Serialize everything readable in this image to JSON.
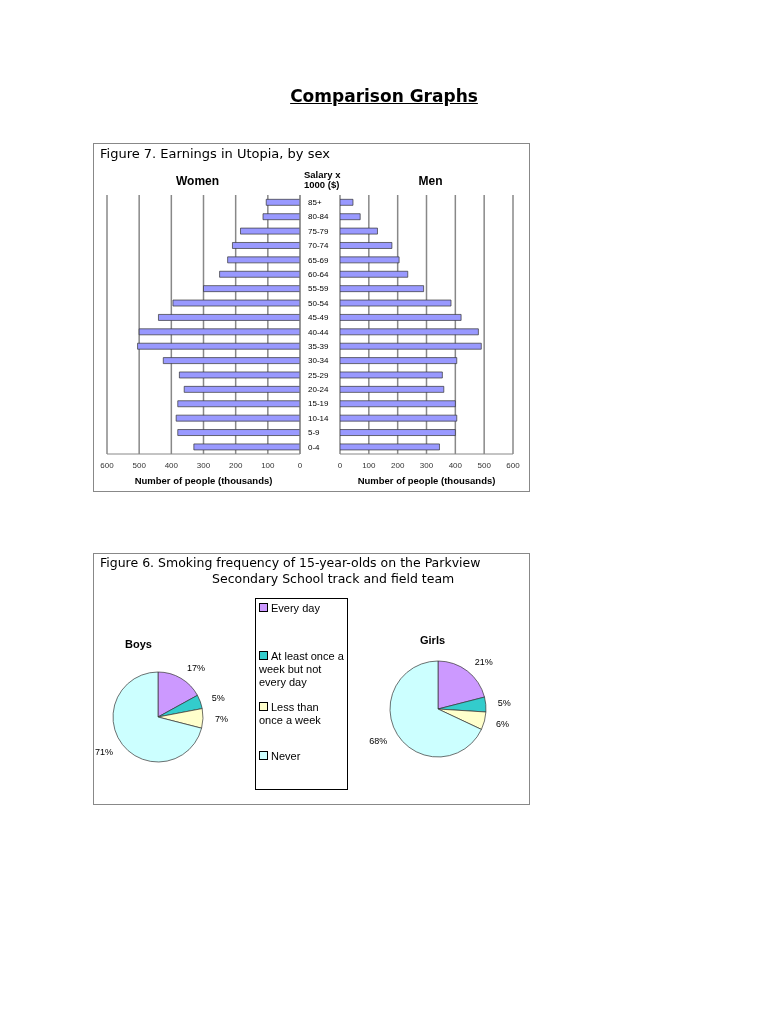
{
  "chart_data": [
    {
      "type": "bar",
      "orientation": "horizontal",
      "title": "Women",
      "annotations": [
        "Comparison Graphs",
        "Figure 7. Earnings in Utopia, by sex"
      ],
      "xlabel": "Number of people (thousands)",
      "categories": [
        "85+",
        "80-84",
        "75-79",
        "70-74",
        "65-69",
        "60-64",
        "55-59",
        "50-54",
        "45-49",
        "40-44",
        "35-39",
        "30-34",
        "25-29",
        "20-24",
        "15-19",
        "10-14",
        "5-9",
        "0-4"
      ],
      "values": [
        105,
        115,
        185,
        210,
        225,
        250,
        300,
        395,
        440,
        500,
        505,
        425,
        375,
        360,
        380,
        385,
        380,
        330
      ],
      "color": "#9999ff",
      "xlim": [
        600,
        0
      ],
      "xticks": [
        600,
        500,
        400,
        300,
        200,
        100,
        0
      ],
      "grid": "x",
      "ylabel": "Salary x 1000 ($)"
    },
    {
      "type": "bar",
      "orientation": "horizontal",
      "title": "Men",
      "xlabel": "Number of people (thousands)",
      "categories": [
        null,
        null,
        null,
        null,
        null,
        null,
        null,
        null,
        null,
        null,
        null,
        null,
        null,
        null,
        null,
        null,
        null,
        null
      ],
      "values": [
        45,
        70,
        130,
        180,
        205,
        235,
        290,
        385,
        420,
        480,
        490,
        405,
        355,
        360,
        400,
        405,
        400,
        345
      ],
      "color": "#9999ff",
      "xlim": [
        0,
        600
      ],
      "xticks": [
        0,
        100,
        200,
        300,
        400,
        500,
        600
      ],
      "grid": "x",
      "tick_labels": "x"
    },
    {
      "type": "pie",
      "title": "Boys",
      "annotations": [
        "Figure 6. Smoking frequency of 15-year-olds on the Parkview Secondary School track and field team"
      ],
      "categories": [
        "Every day",
        "At least once a week but not every day",
        "Less than once a week",
        "Never"
      ],
      "values": [
        17,
        5,
        7,
        71
      ],
      "value_labels": [
        "17%",
        "5%",
        "7%",
        "71%"
      ],
      "colors": [
        "#cc99ff",
        "#33cccc",
        "#ffffcc",
        "#ccffff"
      ],
      "legend": "right"
    },
    {
      "type": "pie",
      "title": "Girls",
      "categories": [
        null,
        null,
        null,
        null
      ],
      "values": [
        21,
        5,
        6,
        68
      ],
      "value_labels": [
        "21%",
        "5%",
        "6%",
        "68%"
      ],
      "colors": [
        "#cc99ff",
        "#33cccc",
        "#ffffcc",
        "#ccffff"
      ]
    }
  ]
}
